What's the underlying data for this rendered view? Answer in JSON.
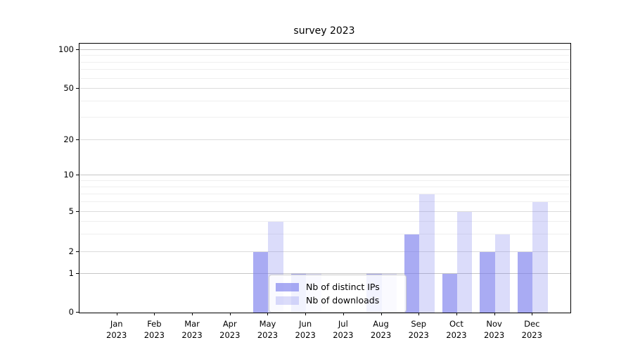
{
  "title": "survey 2023",
  "legend": {
    "items": [
      {
        "label": "Nb of distinct IPs"
      },
      {
        "label": "Nb of downloads"
      }
    ]
  },
  "colors": {
    "distinct_ips_bar": "rgba(116,120,235,0.62)",
    "downloads_bar": "rgba(116,120,235,0.26)",
    "distinct_ips_hex_on_white": "#a8aaf0",
    "downloads_hex_on_white": "#d9dbf8",
    "grid_major": "#c6c6c6",
    "grid_mid": "#dcdcdc",
    "grid_minor": "#efefef",
    "axis": "#000000"
  },
  "axes": {
    "ytick_labels": [
      "100",
      "50",
      "20",
      "10",
      "5",
      "2",
      "1",
      "0"
    ],
    "ytick_values": [
      100,
      50,
      20,
      10,
      5,
      2,
      1,
      0
    ],
    "y_major_grid_values": [
      1,
      10,
      100
    ],
    "y_mid_grid_values": [
      2,
      5,
      20,
      50
    ],
    "y_minor_grid_values": [
      3,
      4,
      6,
      7,
      8,
      9,
      30,
      40,
      60,
      70,
      80,
      90
    ],
    "xtick_months": [
      "Jan",
      "Feb",
      "Mar",
      "Apr",
      "May",
      "Jun",
      "Jul",
      "Aug",
      "Sep",
      "Oct",
      "Nov",
      "Dec"
    ],
    "xtick_year": "2023"
  },
  "chart_data": {
    "type": "bar",
    "title": "survey 2023",
    "categories": [
      "Jan 2023",
      "Feb 2023",
      "Mar 2023",
      "Apr 2023",
      "May 2023",
      "Jun 2023",
      "Jul 2023",
      "Aug 2023",
      "Sep 2023",
      "Oct 2023",
      "Nov 2023",
      "Dec 2023"
    ],
    "series": [
      {
        "name": "Nb of distinct IPs",
        "values": [
          0,
          0,
          0,
          0,
          2,
          1,
          0,
          1,
          3,
          1,
          2,
          2
        ]
      },
      {
        "name": "Nb of downloads",
        "values": [
          0,
          0,
          0,
          0,
          4,
          1,
          0,
          1,
          7,
          5,
          3,
          6
        ]
      }
    ],
    "xlabel": "",
    "ylabel": "",
    "yscale": "symlog-like (linear 0-1, log above)",
    "ylim": [
      0,
      100
    ],
    "yticks": [
      0,
      1,
      2,
      5,
      10,
      20,
      50,
      100
    ],
    "grid": true,
    "legend_position": "lower center (inside plot)"
  }
}
